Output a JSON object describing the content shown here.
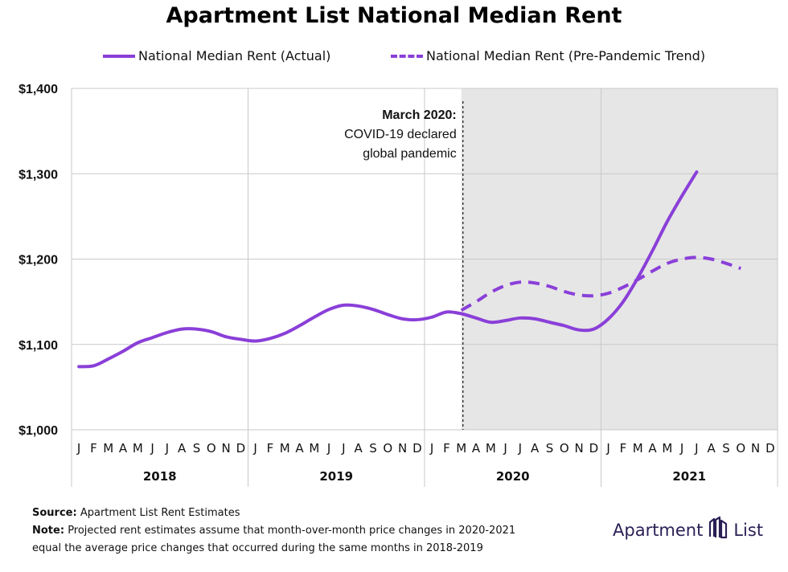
{
  "title": "Apartment List National Median Rent",
  "colors": {
    "series": "#8a3fd8",
    "shade": "#e6e6e6",
    "grid": "#c9c9c9",
    "logo": "#2b1f55"
  },
  "chart_data": {
    "type": "line",
    "title": "Apartment List National Median Rent",
    "xlabel": "",
    "ylabel": "",
    "ylim": [
      1000,
      1400
    ],
    "yticks": [
      1000,
      1100,
      1200,
      1300,
      1400
    ],
    "ytick_labels": [
      "$1,000",
      "$1,100",
      "$1,200",
      "$1,300",
      "$1,400"
    ],
    "month_labels": [
      "J",
      "F",
      "M",
      "A",
      "M",
      "J",
      "J",
      "A",
      "S",
      "O",
      "N",
      "D"
    ],
    "years": [
      "2018",
      "2019",
      "2020",
      "2021"
    ],
    "legend_position": "top",
    "grid": true,
    "shaded_region": {
      "from_month_index": 26,
      "to_month_index": 48
    },
    "series": [
      {
        "name": "National Median Rent (Actual)",
        "style": "solid",
        "start_month_index": 0,
        "values": [
          1074,
          1075,
          1083,
          1092,
          1102,
          1108,
          1114,
          1118,
          1118,
          1115,
          1109,
          1106,
          1104,
          1107,
          1113,
          1122,
          1132,
          1141,
          1146,
          1145,
          1141,
          1135,
          1130,
          1129,
          1132,
          1138,
          1136,
          1131,
          1126,
          1128,
          1131,
          1130,
          1126,
          1122,
          1117,
          1118,
          1130,
          1150,
          1178,
          1210,
          1244,
          1274,
          1302
        ]
      },
      {
        "name": "National Median Rent (Pre-Pandemic Trend)",
        "style": "dashed",
        "start_month_index": 26,
        "values": [
          1140,
          1150,
          1161,
          1169,
          1173,
          1172,
          1168,
          1162,
          1158,
          1157,
          1160,
          1167,
          1176,
          1186,
          1195,
          1200,
          1202,
          1200,
          1195,
          1189
        ]
      }
    ],
    "annotation": {
      "month_index": 26,
      "lines": [
        "March 2020:",
        "COVID-19 declared",
        "global pandemic"
      ]
    }
  },
  "footer": {
    "source_label": "Source:",
    "source_text": "Apartment List Rent Estimates",
    "note_label": "Note:",
    "note_line1": "Projected rent estimates assume that month-over-month price changes in 2020-2021",
    "note_line2": "equal the average price changes that occurred during the same months in 2018-2019"
  },
  "logo": {
    "left_text": "Apartment",
    "right_text": "List",
    "icon": "apartment-list-building-icon"
  }
}
